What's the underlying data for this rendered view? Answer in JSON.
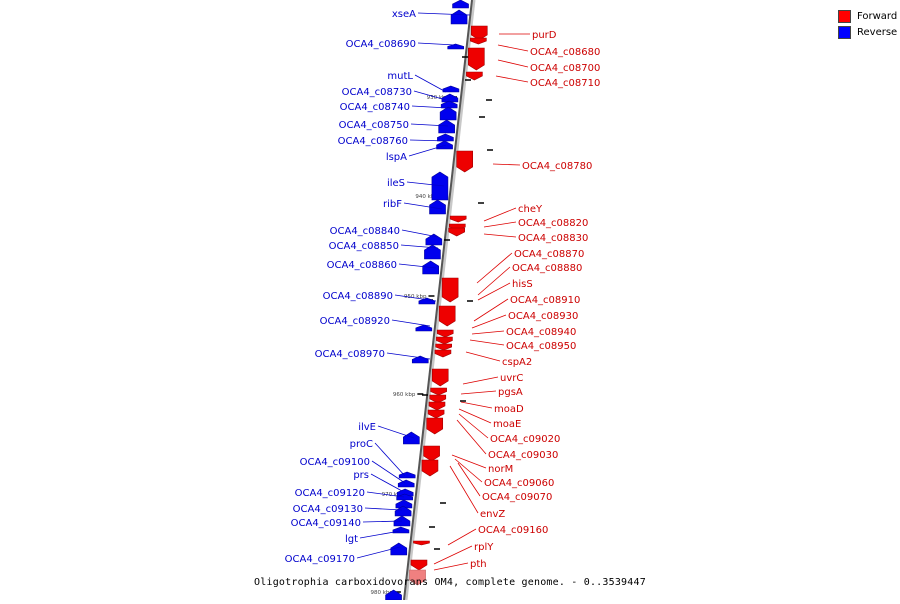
{
  "legend": {
    "forward_label": "Forward",
    "reverse_label": "Reverse",
    "forward_color": "#ff0000",
    "reverse_color": "#0000ff"
  },
  "caption": "Oligotrophia carboxidovorans OM4, complete genome. - 0..3539447",
  "scale_labels": [
    "930 kbp",
    "940 kbp",
    "950 kbp",
    "960 kbp",
    "970 kbp",
    "980 kbp"
  ],
  "reverse_genes": [
    "xseA",
    "OCA4_c08690",
    "mutL",
    "OCA4_c08730",
    "OCA4_c08740",
    "OCA4_c08750",
    "OCA4_c08760",
    "lspA",
    "ileS",
    "ribF",
    "OCA4_c08840",
    "OCA4_c08850",
    "OCA4_c08860",
    "OCA4_c08890",
    "OCA4_c08920",
    "OCA4_c08970",
    "ilvE",
    "proC",
    "OCA4_c09100",
    "prs",
    "OCA4_c09120",
    "OCA4_c09130",
    "OCA4_c09140",
    "lgt",
    "OCA4_c09170"
  ],
  "forward_genes": [
    "purD",
    "OCA4_c08680",
    "OCA4_c08700",
    "OCA4_c08710",
    "OCA4_c08780",
    "cheY",
    "OCA4_c08820",
    "OCA4_c08830",
    "OCA4_c08870",
    "OCA4_c08880",
    "hisS",
    "OCA4_c08910",
    "OCA4_c08930",
    "OCA4_c08940",
    "OCA4_c08950",
    "cspA2",
    "uvrC",
    "pgsA",
    "moaD",
    "moaE",
    "OCA4_c09020",
    "OCA4_c09030",
    "norM",
    "OCA4_c09060",
    "OCA4_c09070",
    "envZ",
    "OCA4_c09160",
    "rplY",
    "pth"
  ]
}
